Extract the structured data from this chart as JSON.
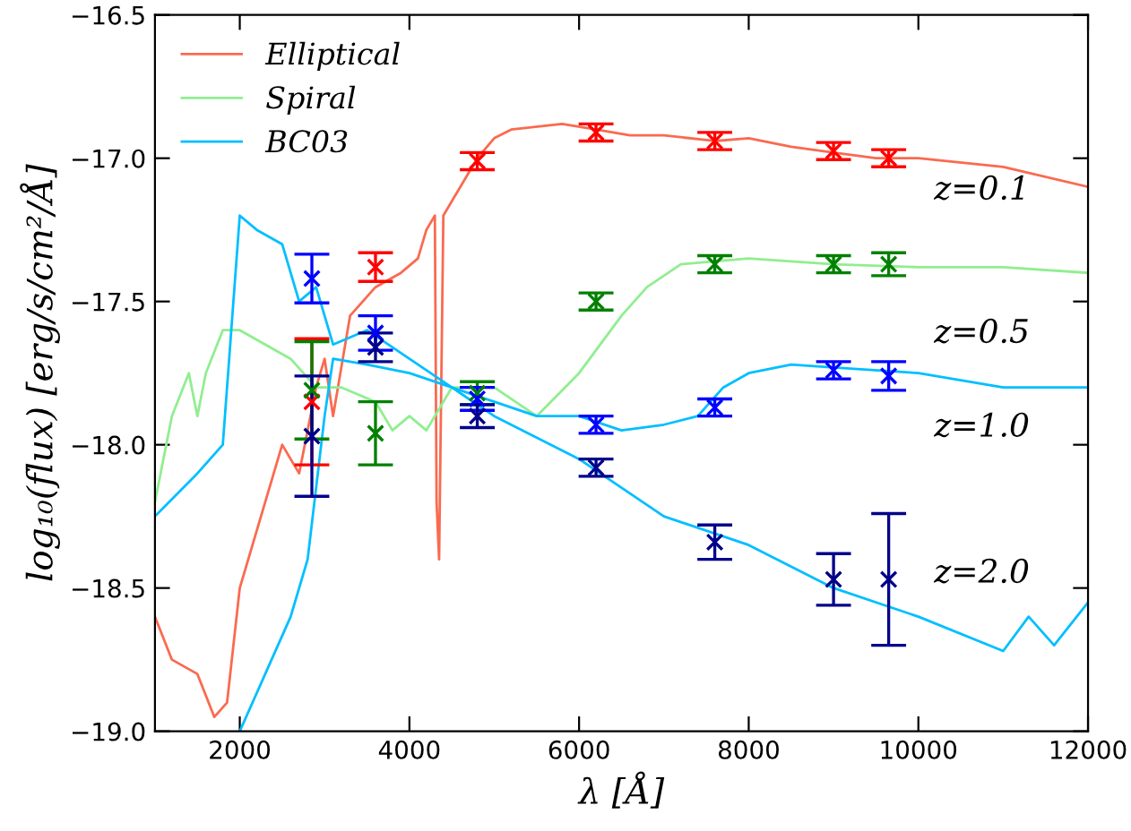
{
  "chart_data": {
    "type": "line",
    "xlabel": "λ [Å]",
    "ylabel": "log₁₀(flux) [erg/s/cm²/Å]",
    "xlim": [
      1000,
      12000
    ],
    "xticks": [
      2000,
      4000,
      6000,
      8000,
      10000,
      12000
    ],
    "ylim": [
      -19.0,
      -16.5
    ],
    "yticks": [
      {
        "value": -19.0,
        "label": "−19.0"
      },
      {
        "value": -18.5,
        "label": "−18.5"
      },
      {
        "value": -18.0,
        "label": "−18.0"
      },
      {
        "value": -17.5,
        "label": "−17.5"
      },
      {
        "value": -17.0,
        "label": "−17.0"
      },
      {
        "value": -16.5,
        "label": "−16.5"
      }
    ],
    "grid": false,
    "legend": "top left",
    "series": [
      {
        "name": "Elliptical",
        "color": "#fa6a50",
        "x": [
          1000,
          1200,
          1500,
          1700,
          1850,
          2000,
          2200,
          2500,
          2700,
          2900,
          3000,
          3100,
          3300,
          3600,
          3900,
          4100,
          4200,
          4300,
          4320,
          4350,
          4400,
          4600,
          4800,
          5000,
          5200,
          5800,
          6200,
          6600,
          7000,
          7600,
          8000,
          8500,
          9000,
          9500,
          10000,
          11000,
          12000
        ],
        "values": [
          -18.6,
          -18.75,
          -18.8,
          -18.95,
          -18.9,
          -18.5,
          -18.3,
          -18.0,
          -18.1,
          -17.8,
          -17.7,
          -17.9,
          -17.55,
          -17.45,
          -17.4,
          -17.35,
          -17.25,
          -17.2,
          -18.2,
          -18.4,
          -17.2,
          -17.1,
          -17.0,
          -16.93,
          -16.9,
          -16.88,
          -16.9,
          -16.92,
          -16.92,
          -16.94,
          -16.93,
          -16.96,
          -16.98,
          -17.0,
          -17.0,
          -17.03,
          -17.1
        ]
      },
      {
        "name": "Spiral",
        "color": "#90ee90",
        "x": [
          1000,
          1200,
          1400,
          1500,
          1600,
          1800,
          2000,
          2300,
          2600,
          2900,
          3200,
          3600,
          3800,
          4000,
          4200,
          4500,
          5000,
          5500,
          6000,
          6500,
          6800,
          7200,
          8000,
          9000,
          10000,
          11000,
          12000
        ],
        "values": [
          -18.2,
          -17.9,
          -17.75,
          -17.9,
          -17.75,
          -17.6,
          -17.6,
          -17.65,
          -17.7,
          -17.8,
          -17.8,
          -17.85,
          -17.95,
          -17.9,
          -17.95,
          -17.8,
          -17.8,
          -17.9,
          -17.75,
          -17.55,
          -17.45,
          -17.37,
          -17.35,
          -17.37,
          -17.38,
          -17.38,
          -17.4
        ]
      },
      {
        "name": "BC03",
        "color": "#00bfff",
        "x": [
          1000,
          1500,
          1800,
          1900,
          2000,
          2200,
          2500,
          2700,
          2900,
          3100,
          3500,
          4000,
          4500,
          5000,
          5500,
          6000,
          6500,
          7000,
          7400,
          7700,
          8000,
          8500,
          9000,
          10000,
          11000,
          12000
        ],
        "values": [
          -18.25,
          -18.1,
          -18.0,
          -17.6,
          -17.2,
          -17.25,
          -17.3,
          -17.5,
          -17.45,
          -17.65,
          -17.6,
          -17.7,
          -17.8,
          -17.85,
          -17.9,
          -17.9,
          -17.95,
          -17.93,
          -17.9,
          -17.8,
          -17.75,
          -17.72,
          -17.73,
          -17.75,
          -17.8,
          -17.8
        ]
      },
      {
        "color": "#00bfff",
        "x": [
          2000,
          2300,
          2600,
          2800,
          3000,
          3100,
          3500,
          4000,
          4500,
          5000,
          6000,
          7000,
          8000,
          9000,
          10000,
          11000,
          11300,
          11600,
          12000
        ],
        "values": [
          -19.0,
          -18.8,
          -18.6,
          -18.4,
          -17.9,
          -17.7,
          -17.72,
          -17.75,
          -17.8,
          -17.9,
          -18.05,
          -18.25,
          -18.35,
          -18.5,
          -18.6,
          -18.72,
          -18.6,
          -18.7,
          -18.55
        ]
      },
      {
        "type": "scatter",
        "marker": "cross",
        "color": "#ff0000",
        "x": [
          2850,
          3600,
          4800,
          6200,
          7600,
          9000,
          9650
        ],
        "values": [
          -17.85,
          -17.38,
          -17.01,
          -16.91,
          -16.94,
          -16.975,
          -17.0
        ],
        "errors": [
          0.22,
          0.05,
          0.03,
          0.03,
          0.03,
          0.03,
          0.03
        ]
      },
      {
        "type": "scatter",
        "marker": "cross",
        "color": "#008000",
        "x": [
          2850,
          3600,
          4800,
          6200,
          7600,
          9000,
          9650
        ],
        "values": [
          -17.81,
          -17.96,
          -17.82,
          -17.5,
          -17.37,
          -17.37,
          -17.37
        ],
        "errors": [
          0.17,
          0.11,
          0.04,
          0.03,
          0.03,
          0.03,
          0.04
        ]
      },
      {
        "type": "scatter",
        "marker": "cross",
        "color": "#0000ff",
        "x": [
          2850,
          3600,
          4800,
          6200,
          7600,
          9000,
          9650
        ],
        "values": [
          -17.42,
          -17.61,
          -17.84,
          -17.93,
          -17.87,
          -17.74,
          -17.76
        ],
        "errors": [
          0.085,
          0.06,
          0.04,
          0.03,
          0.03,
          0.03,
          0.05
        ]
      },
      {
        "type": "scatter",
        "marker": "cross",
        "color": "#00008b",
        "x": [
          2850,
          3600,
          4800,
          6200,
          7600,
          9000,
          9650
        ],
        "values": [
          -17.97,
          -17.66,
          -17.9,
          -18.08,
          -18.34,
          -18.47,
          -18.47
        ],
        "errors": [
          0.21,
          0.05,
          0.04,
          0.03,
          0.06,
          0.09,
          0.23
        ]
      }
    ],
    "annotations": [
      "z=0.1",
      "z=0.5",
      "z=1.0",
      "z=2.0"
    ]
  }
}
